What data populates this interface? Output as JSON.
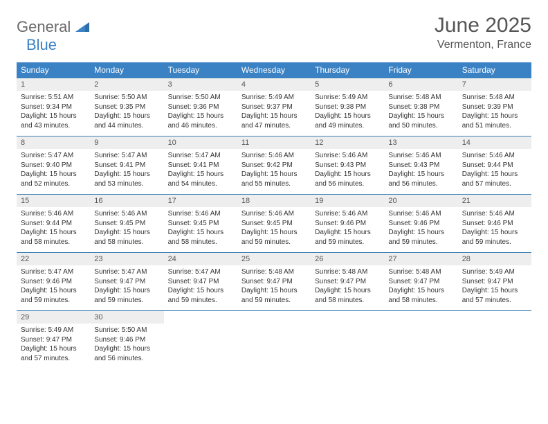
{
  "logo": {
    "gray": "General",
    "blue": "Blue"
  },
  "header": {
    "month": "June 2025",
    "location": "Vermenton, France"
  },
  "colors": {
    "header_bg": "#3b82c4",
    "header_text": "#ffffff",
    "dayband_bg": "#eeeeee",
    "dayband_text": "#555555",
    "border": "#3b7fb5",
    "logo_gray": "#6b6b6b",
    "logo_blue": "#3b82c4"
  },
  "dow": [
    "Sunday",
    "Monday",
    "Tuesday",
    "Wednesday",
    "Thursday",
    "Friday",
    "Saturday"
  ],
  "weeks": [
    {
      "days": [
        {
          "n": "1",
          "sr": "Sunrise: 5:51 AM",
          "ss": "Sunset: 9:34 PM",
          "d1": "Daylight: 15 hours",
          "d2": "and 43 minutes."
        },
        {
          "n": "2",
          "sr": "Sunrise: 5:50 AM",
          "ss": "Sunset: 9:35 PM",
          "d1": "Daylight: 15 hours",
          "d2": "and 44 minutes."
        },
        {
          "n": "3",
          "sr": "Sunrise: 5:50 AM",
          "ss": "Sunset: 9:36 PM",
          "d1": "Daylight: 15 hours",
          "d2": "and 46 minutes."
        },
        {
          "n": "4",
          "sr": "Sunrise: 5:49 AM",
          "ss": "Sunset: 9:37 PM",
          "d1": "Daylight: 15 hours",
          "d2": "and 47 minutes."
        },
        {
          "n": "5",
          "sr": "Sunrise: 5:49 AM",
          "ss": "Sunset: 9:38 PM",
          "d1": "Daylight: 15 hours",
          "d2": "and 49 minutes."
        },
        {
          "n": "6",
          "sr": "Sunrise: 5:48 AM",
          "ss": "Sunset: 9:38 PM",
          "d1": "Daylight: 15 hours",
          "d2": "and 50 minutes."
        },
        {
          "n": "7",
          "sr": "Sunrise: 5:48 AM",
          "ss": "Sunset: 9:39 PM",
          "d1": "Daylight: 15 hours",
          "d2": "and 51 minutes."
        }
      ]
    },
    {
      "days": [
        {
          "n": "8",
          "sr": "Sunrise: 5:47 AM",
          "ss": "Sunset: 9:40 PM",
          "d1": "Daylight: 15 hours",
          "d2": "and 52 minutes."
        },
        {
          "n": "9",
          "sr": "Sunrise: 5:47 AM",
          "ss": "Sunset: 9:41 PM",
          "d1": "Daylight: 15 hours",
          "d2": "and 53 minutes."
        },
        {
          "n": "10",
          "sr": "Sunrise: 5:47 AM",
          "ss": "Sunset: 9:41 PM",
          "d1": "Daylight: 15 hours",
          "d2": "and 54 minutes."
        },
        {
          "n": "11",
          "sr": "Sunrise: 5:46 AM",
          "ss": "Sunset: 9:42 PM",
          "d1": "Daylight: 15 hours",
          "d2": "and 55 minutes."
        },
        {
          "n": "12",
          "sr": "Sunrise: 5:46 AM",
          "ss": "Sunset: 9:43 PM",
          "d1": "Daylight: 15 hours",
          "d2": "and 56 minutes."
        },
        {
          "n": "13",
          "sr": "Sunrise: 5:46 AM",
          "ss": "Sunset: 9:43 PM",
          "d1": "Daylight: 15 hours",
          "d2": "and 56 minutes."
        },
        {
          "n": "14",
          "sr": "Sunrise: 5:46 AM",
          "ss": "Sunset: 9:44 PM",
          "d1": "Daylight: 15 hours",
          "d2": "and 57 minutes."
        }
      ]
    },
    {
      "days": [
        {
          "n": "15",
          "sr": "Sunrise: 5:46 AM",
          "ss": "Sunset: 9:44 PM",
          "d1": "Daylight: 15 hours",
          "d2": "and 58 minutes."
        },
        {
          "n": "16",
          "sr": "Sunrise: 5:46 AM",
          "ss": "Sunset: 9:45 PM",
          "d1": "Daylight: 15 hours",
          "d2": "and 58 minutes."
        },
        {
          "n": "17",
          "sr": "Sunrise: 5:46 AM",
          "ss": "Sunset: 9:45 PM",
          "d1": "Daylight: 15 hours",
          "d2": "and 58 minutes."
        },
        {
          "n": "18",
          "sr": "Sunrise: 5:46 AM",
          "ss": "Sunset: 9:45 PM",
          "d1": "Daylight: 15 hours",
          "d2": "and 59 minutes."
        },
        {
          "n": "19",
          "sr": "Sunrise: 5:46 AM",
          "ss": "Sunset: 9:46 PM",
          "d1": "Daylight: 15 hours",
          "d2": "and 59 minutes."
        },
        {
          "n": "20",
          "sr": "Sunrise: 5:46 AM",
          "ss": "Sunset: 9:46 PM",
          "d1": "Daylight: 15 hours",
          "d2": "and 59 minutes."
        },
        {
          "n": "21",
          "sr": "Sunrise: 5:46 AM",
          "ss": "Sunset: 9:46 PM",
          "d1": "Daylight: 15 hours",
          "d2": "and 59 minutes."
        }
      ]
    },
    {
      "days": [
        {
          "n": "22",
          "sr": "Sunrise: 5:47 AM",
          "ss": "Sunset: 9:46 PM",
          "d1": "Daylight: 15 hours",
          "d2": "and 59 minutes."
        },
        {
          "n": "23",
          "sr": "Sunrise: 5:47 AM",
          "ss": "Sunset: 9:47 PM",
          "d1": "Daylight: 15 hours",
          "d2": "and 59 minutes."
        },
        {
          "n": "24",
          "sr": "Sunrise: 5:47 AM",
          "ss": "Sunset: 9:47 PM",
          "d1": "Daylight: 15 hours",
          "d2": "and 59 minutes."
        },
        {
          "n": "25",
          "sr": "Sunrise: 5:48 AM",
          "ss": "Sunset: 9:47 PM",
          "d1": "Daylight: 15 hours",
          "d2": "and 59 minutes."
        },
        {
          "n": "26",
          "sr": "Sunrise: 5:48 AM",
          "ss": "Sunset: 9:47 PM",
          "d1": "Daylight: 15 hours",
          "d2": "and 58 minutes."
        },
        {
          "n": "27",
          "sr": "Sunrise: 5:48 AM",
          "ss": "Sunset: 9:47 PM",
          "d1": "Daylight: 15 hours",
          "d2": "and 58 minutes."
        },
        {
          "n": "28",
          "sr": "Sunrise: 5:49 AM",
          "ss": "Sunset: 9:47 PM",
          "d1": "Daylight: 15 hours",
          "d2": "and 57 minutes."
        }
      ]
    },
    {
      "days": [
        {
          "n": "29",
          "sr": "Sunrise: 5:49 AM",
          "ss": "Sunset: 9:47 PM",
          "d1": "Daylight: 15 hours",
          "d2": "and 57 minutes."
        },
        {
          "n": "30",
          "sr": "Sunrise: 5:50 AM",
          "ss": "Sunset: 9:46 PM",
          "d1": "Daylight: 15 hours",
          "d2": "and 56 minutes."
        },
        null,
        null,
        null,
        null,
        null
      ]
    }
  ]
}
